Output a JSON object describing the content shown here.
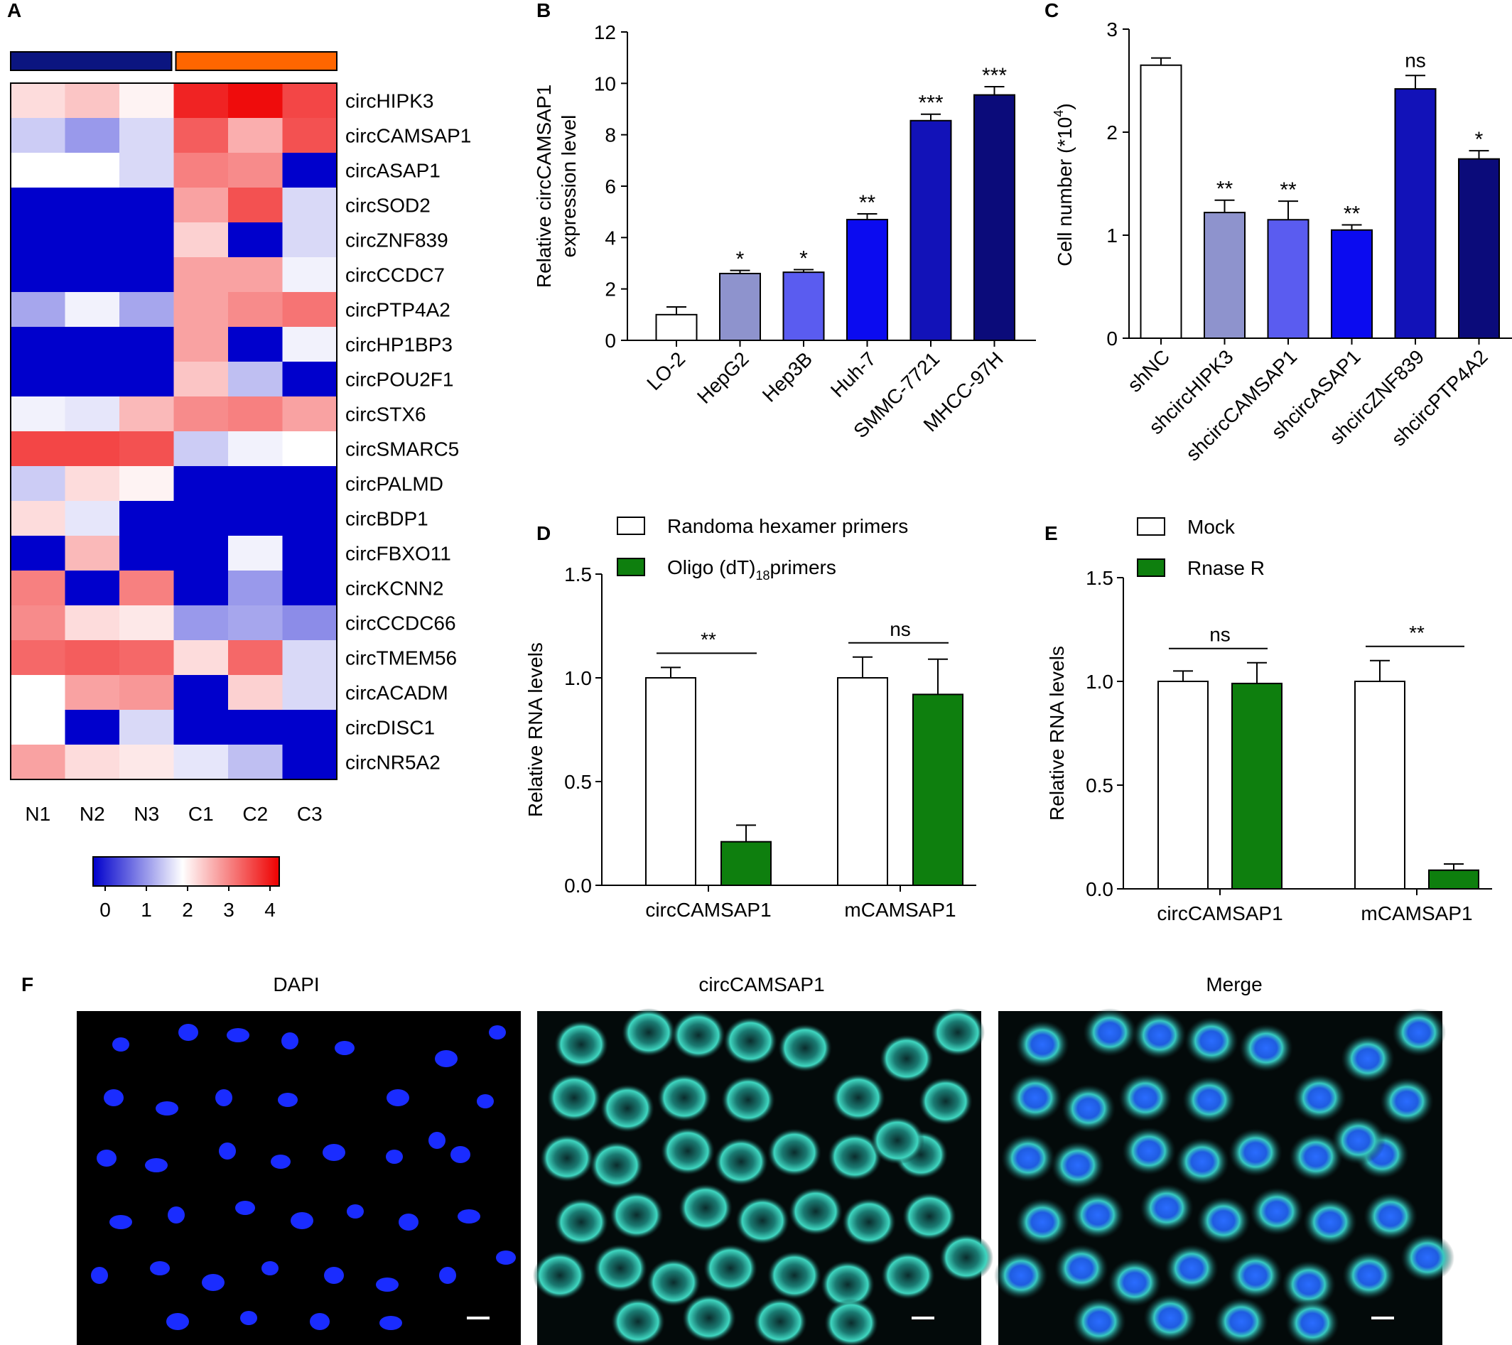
{
  "panel_letters": [
    "A",
    "B",
    "C",
    "D",
    "E",
    "F"
  ],
  "colors": {
    "normal_group": "#0b1580",
    "cancer_group": "#ff6600",
    "white": "#ffffff",
    "green": "#0e7f0e",
    "scale_low": "#0000cc",
    "scale_mid": "#ffffff",
    "scale_high": "#ee0000"
  },
  "chart_data": [
    {
      "panel": "A",
      "type": "heatmap",
      "columns": [
        "N1",
        "N2",
        "N3",
        "C1",
        "C2",
        "C3"
      ],
      "groups": [
        {
          "color": "#0b1580",
          "span": [
            0,
            2
          ]
        },
        {
          "color": "#ff6600",
          "span": [
            3,
            5
          ]
        }
      ],
      "rows": [
        "circHIPK3",
        "circCAMSAP1",
        "circASAP1",
        "circSOD2",
        "circZNF839",
        "circCCDC7",
        "circPTP4A2",
        "circHP1BP3",
        "circPOU2F1",
        "circSTX6",
        "circSMARC5",
        "circPALMD",
        "circBDP1",
        "circFBXO11",
        "circKCNN2",
        "circCCDC66",
        "circTMEM56",
        "circACADM",
        "circDISC1",
        "circNR5A2"
      ],
      "values": [
        [
          2.3,
          2.5,
          2.1,
          3.9,
          4.1,
          3.6
        ],
        [
          1.6,
          1.2,
          1.7,
          3.4,
          2.7,
          3.5
        ],
        [
          2.0,
          2.0,
          1.7,
          3.1,
          3.0,
          0.0
        ],
        [
          0.0,
          0.0,
          0.0,
          2.8,
          3.5,
          1.7
        ],
        [
          0.0,
          0.0,
          0.0,
          2.4,
          0.0,
          1.7
        ],
        [
          0.0,
          0.0,
          0.0,
          2.8,
          2.8,
          1.9
        ],
        [
          1.3,
          1.9,
          1.3,
          2.8,
          3.0,
          3.2
        ],
        [
          0.0,
          0.0,
          0.0,
          2.8,
          0.0,
          1.9
        ],
        [
          0.0,
          0.0,
          0.0,
          2.5,
          1.5,
          0.0
        ],
        [
          1.9,
          1.8,
          2.6,
          3.0,
          3.1,
          2.8
        ],
        [
          3.6,
          3.6,
          3.5,
          1.6,
          1.9,
          2.0
        ],
        [
          1.6,
          2.3,
          2.1,
          0.0,
          0.0,
          0.0
        ],
        [
          2.3,
          1.8,
          0.0,
          0.0,
          0.0,
          0.0
        ],
        [
          0.0,
          2.6,
          0.0,
          0.0,
          1.9,
          0.0
        ],
        [
          3.1,
          0.0,
          3.1,
          0.0,
          1.2,
          0.0
        ],
        [
          3.0,
          2.3,
          2.2,
          1.2,
          1.3,
          1.1
        ],
        [
          3.3,
          3.4,
          3.3,
          2.3,
          3.3,
          1.7
        ],
        [
          2.0,
          2.8,
          2.9,
          0.0,
          2.4,
          1.7
        ],
        [
          2.0,
          0.0,
          1.7,
          0.0,
          0.0,
          0.0
        ],
        [
          2.8,
          2.3,
          2.2,
          1.8,
          1.5,
          0.0
        ]
      ],
      "colorbar": {
        "ticks": [
          "0",
          "1",
          "2",
          "3",
          "4"
        ],
        "range": [
          0,
          4.2
        ]
      }
    },
    {
      "panel": "B",
      "type": "bar",
      "ylabel_lines": [
        "Relative circCAMSAP1",
        "expression level"
      ],
      "ylim": [
        0,
        12
      ],
      "yticks": [
        0,
        2,
        4,
        6,
        8,
        10,
        12
      ],
      "categories": [
        "LO-2",
        "HepG2",
        "Hep3B",
        "Huh-7",
        "SMMC-7721",
        "MHCC-97H"
      ],
      "values": [
        1.0,
        2.6,
        2.65,
        4.7,
        8.55,
        9.55
      ],
      "errors": [
        0.3,
        0.12,
        0.1,
        0.22,
        0.25,
        0.32
      ],
      "significance": [
        "",
        "*",
        "*",
        "**",
        "***",
        "***"
      ],
      "bar_colors": [
        "#ffffff",
        "#8e93cd",
        "#5a5cf0",
        "#0b0bf0",
        "#1212b8",
        "#0b0b7a"
      ]
    },
    {
      "panel": "C",
      "type": "bar",
      "ylabel": "Cell number (*10",
      "ylabel_sup": "4",
      "ylabel_end": ")",
      "ylim": [
        0,
        3
      ],
      "yticks": [
        0,
        1,
        2,
        3
      ],
      "categories": [
        "shNC",
        "shcircHIPK3",
        "shcircCAMSAP1",
        "shcircASAP1",
        "shcircZNF839",
        "shcircPTP4A2"
      ],
      "values": [
        2.65,
        1.22,
        1.15,
        1.05,
        2.42,
        1.74
      ],
      "errors": [
        0.07,
        0.12,
        0.18,
        0.05,
        0.13,
        0.08
      ],
      "significance": [
        "",
        "**",
        "**",
        "**",
        "ns",
        "*"
      ],
      "bar_colors": [
        "#ffffff",
        "#8e93cd",
        "#5a5cf0",
        "#0b0bf0",
        "#1212b8",
        "#0b0b7a"
      ]
    },
    {
      "panel": "D",
      "type": "bar",
      "ylabel": "Relative RNA levels",
      "ylim": [
        0,
        1.5
      ],
      "yticks": [
        "0.0",
        "0.5",
        "1.0",
        "1.5"
      ],
      "categories": [
        "circCAMSAP1",
        "mCAMSAP1"
      ],
      "series": [
        {
          "name": "Randoma hexamer primers",
          "values": [
            1.0,
            1.0
          ],
          "errors": [
            0.05,
            0.1
          ],
          "color": "#ffffff"
        },
        {
          "name": "Oligo (dT)",
          "name_sub": "18",
          "name_end": "primers",
          "values": [
            0.21,
            0.92
          ],
          "errors": [
            0.08,
            0.17
          ],
          "color": "#0e7f0e"
        }
      ],
      "significance": [
        "**",
        "ns"
      ]
    },
    {
      "panel": "E",
      "type": "bar",
      "ylabel": "Relative RNA levels",
      "ylim": [
        0,
        1.5
      ],
      "yticks": [
        "0.0",
        "0.5",
        "1.0",
        "1.5"
      ],
      "categories": [
        "circCAMSAP1",
        "mCAMSAP1"
      ],
      "series": [
        {
          "name": "Mock",
          "values": [
            1.0,
            1.0
          ],
          "errors": [
            0.05,
            0.1
          ],
          "color": "#ffffff"
        },
        {
          "name": "Rnase R",
          "values": [
            0.99,
            0.09
          ],
          "errors": [
            0.1,
            0.03
          ],
          "color": "#0e7f0e"
        }
      ],
      "significance": [
        "ns",
        "**"
      ]
    }
  ],
  "microscopy": {
    "titles": [
      "DAPI",
      "circCAMSAP1",
      "Merge"
    ]
  }
}
